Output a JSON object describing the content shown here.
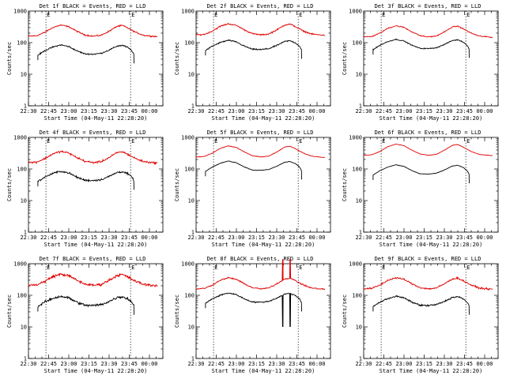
{
  "chart_data": {
    "type": "line",
    "layout_grid": "3x3",
    "y_scale": "log",
    "ylim": [
      1,
      1000
    ],
    "yticks": [
      {
        "value": 1,
        "label": "1"
      },
      {
        "value": 10,
        "label": "10"
      },
      {
        "value": 100,
        "label": "100"
      },
      {
        "value": 1000,
        "label": "1000"
      }
    ],
    "xlim": [
      0,
      100
    ],
    "xticks": [
      {
        "value": 0,
        "label": "22:30"
      },
      {
        "value": 15,
        "label": "22:45"
      },
      {
        "value": 30,
        "label": "23:00"
      },
      {
        "value": 45,
        "label": "23:15"
      },
      {
        "value": 60,
        "label": "23:30"
      },
      {
        "value": 75,
        "label": "23:45"
      },
      {
        "value": 90,
        "label": "00:00"
      }
    ],
    "xlabel": "Start Time (04-May-11 22:28:20)",
    "ylabel": "Counts/sec",
    "markers": [
      {
        "label": "E",
        "x": 13
      },
      {
        "label": "E",
        "x": 76
      }
    ],
    "series_colors": {
      "events": "#000000",
      "lld": "#e00000"
    },
    "panels": [
      {
        "title": "Det 1f BLACK = Events, RED = LLD",
        "events_scale": 1.0,
        "lld_scale": 1.0,
        "noise": 0.04,
        "spikes": []
      },
      {
        "title": "Det 2f BLACK = Events, RED = LLD",
        "events_scale": 1.4,
        "lld_scale": 1.1,
        "noise": 0.04,
        "spikes": []
      },
      {
        "title": "Det 3f BLACK = Events, RED = LLD",
        "events_scale": 1.5,
        "lld_scale": 0.95,
        "noise": 0.03,
        "spikes": []
      },
      {
        "title": "Det 4f BLACK = Events, RED = LLD",
        "events_scale": 1.0,
        "lld_scale": 1.0,
        "noise": 0.06,
        "spikes": []
      },
      {
        "title": "Det 5f BLACK = Events, RED = LLD",
        "events_scale": 2.1,
        "lld_scale": 1.5,
        "noise": 0.015,
        "spikes": []
      },
      {
        "title": "Det 6f BLACK = Events, RED = LLD",
        "events_scale": 1.6,
        "lld_scale": 1.7,
        "noise": 0.012,
        "spikes": []
      },
      {
        "title": "Det 7f BLACK = Events, RED = LLD",
        "events_scale": 1.1,
        "lld_scale": 1.3,
        "noise": 0.08,
        "spikes": []
      },
      {
        "title": "Det 8f BLACK = Events, RED = LLD",
        "events_scale": 1.4,
        "lld_scale": 1.0,
        "noise": 0.04,
        "spikes": [
          {
            "x": 64.5,
            "lld": 1000,
            "events": 10
          },
          {
            "x": 70,
            "lld": 1000,
            "events": 10
          }
        ]
      },
      {
        "title": "Det 9f BLACK = Events, RED = LLD",
        "events_scale": 1.1,
        "lld_scale": 1.0,
        "noise": 0.05,
        "spikes": []
      }
    ],
    "events_profile": [
      [
        7,
        40
      ],
      [
        12,
        55
      ],
      [
        18,
        72
      ],
      [
        24,
        85
      ],
      [
        30,
        75
      ],
      [
        36,
        55
      ],
      [
        42,
        44
      ],
      [
        48,
        43
      ],
      [
        54,
        46
      ],
      [
        60,
        58
      ],
      [
        66,
        78
      ],
      [
        70,
        82
      ],
      [
        74,
        70
      ],
      [
        77,
        55
      ],
      [
        78.5,
        42
      ]
    ],
    "lld_profile": [
      [
        0,
        160
      ],
      [
        6,
        165
      ],
      [
        12,
        210
      ],
      [
        18,
        300
      ],
      [
        24,
        360
      ],
      [
        30,
        320
      ],
      [
        36,
        230
      ],
      [
        42,
        175
      ],
      [
        48,
        160
      ],
      [
        54,
        170
      ],
      [
        60,
        230
      ],
      [
        66,
        330
      ],
      [
        70,
        350
      ],
      [
        74,
        290
      ],
      [
        80,
        210
      ],
      [
        86,
        170
      ],
      [
        92,
        160
      ],
      [
        96,
        155
      ]
    ]
  }
}
